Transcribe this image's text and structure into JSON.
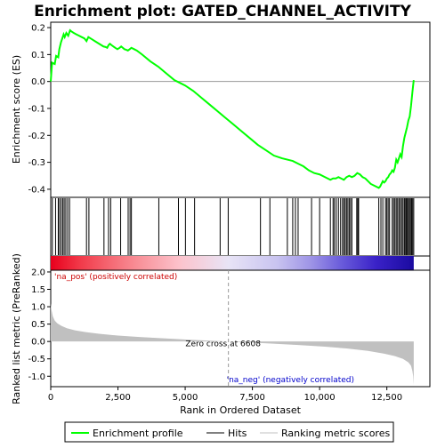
{
  "chart_data": {
    "type": "line",
    "title": "Enrichment plot: GATED_CHANNEL_ACTIVITY",
    "colors": {
      "enrichment": "#00ff00",
      "hits": "#000000",
      "metric": "#c0c0c0",
      "pos_label": "#cc0000",
      "neg_label": "#0000cc"
    },
    "top_panel": {
      "ylabel": "Enrichment score (ES)",
      "ylim": [
        -0.43,
        0.22
      ],
      "yticks": [
        0.2,
        0.1,
        0.0,
        -0.1,
        -0.2,
        -0.3,
        -0.4
      ],
      "ytick_labels": [
        "0.2",
        "0.1",
        "0.0",
        "-0.1",
        "-0.2",
        "-0.3",
        "-0.4"
      ],
      "es_curve": {
        "x": [
          0,
          50,
          150,
          200,
          280,
          320,
          380,
          430,
          480,
          520,
          580,
          650,
          720,
          780,
          860,
          950,
          1050,
          1150,
          1250,
          1330,
          1400,
          1480,
          1560,
          1640,
          1720,
          1800,
          1880,
          1960,
          2040,
          2100,
          2150,
          2200,
          2260,
          2330,
          2400,
          2480,
          2560,
          2620,
          2680,
          2740,
          2800,
          2870,
          2940,
          3000,
          3100,
          3200,
          3400,
          3700,
          4000,
          4300,
          4600,
          4800,
          5000,
          5300,
          5600,
          5900,
          6200,
          6500,
          6800,
          7100,
          7400,
          7700,
          8000,
          8300,
          8600,
          8800,
          9000,
          9200,
          9400,
          9600,
          9800,
          10000,
          10200,
          10400,
          10500,
          10600,
          10700,
          10800,
          10900,
          11000,
          11100,
          11200,
          11300,
          11400,
          11500,
          11600,
          11700,
          11800,
          11900,
          12000,
          12100,
          12200,
          12250,
          12300,
          12350,
          12400,
          12450,
          12500,
          12550,
          12600,
          12650,
          12700,
          12750,
          12800,
          12850,
          12900,
          12950,
          13000,
          13050,
          13100,
          13150,
          13200,
          13250,
          13300,
          13350,
          13400,
          13450,
          13500
        ],
        "y": [
          0.0,
          0.07,
          0.065,
          0.095,
          0.09,
          0.12,
          0.145,
          0.16,
          0.175,
          0.165,
          0.18,
          0.17,
          0.19,
          0.185,
          0.18,
          0.175,
          0.17,
          0.165,
          0.16,
          0.15,
          0.165,
          0.16,
          0.155,
          0.15,
          0.145,
          0.14,
          0.135,
          0.13,
          0.128,
          0.125,
          0.135,
          0.14,
          0.135,
          0.13,
          0.125,
          0.12,
          0.125,
          0.13,
          0.125,
          0.12,
          0.118,
          0.115,
          0.12,
          0.125,
          0.12,
          0.115,
          0.1,
          0.075,
          0.055,
          0.03,
          0.005,
          -0.005,
          -0.015,
          -0.035,
          -0.06,
          -0.085,
          -0.11,
          -0.135,
          -0.16,
          -0.185,
          -0.21,
          -0.235,
          -0.255,
          -0.275,
          -0.285,
          -0.29,
          -0.295,
          -0.305,
          -0.315,
          -0.33,
          -0.34,
          -0.345,
          -0.355,
          -0.365,
          -0.36,
          -0.36,
          -0.355,
          -0.36,
          -0.365,
          -0.355,
          -0.35,
          -0.355,
          -0.35,
          -0.34,
          -0.345,
          -0.355,
          -0.36,
          -0.37,
          -0.38,
          -0.385,
          -0.39,
          -0.395,
          -0.39,
          -0.38,
          -0.37,
          -0.375,
          -0.37,
          -0.36,
          -0.355,
          -0.345,
          -0.34,
          -0.33,
          -0.335,
          -0.32,
          -0.29,
          -0.3,
          -0.285,
          -0.27,
          -0.28,
          -0.24,
          -0.21,
          -0.19,
          -0.17,
          -0.145,
          -0.13,
          -0.09,
          -0.04,
          0.005
        ]
      }
    },
    "hits": [
      60,
      180,
      280,
      330,
      390,
      450,
      500,
      560,
      630,
      700,
      1330,
      1420,
      1980,
      2150,
      2230,
      2600,
      2880,
      2950,
      3000,
      4020,
      4750,
      5010,
      5350,
      6300,
      6600,
      7800,
      8150,
      8800,
      9000,
      9100,
      9200,
      9700,
      10000,
      10400,
      10500,
      10550,
      10620,
      10700,
      10780,
      10850,
      10900,
      10950,
      11000,
      11050,
      11100,
      11150,
      11200,
      11380,
      11420,
      11450,
      12200,
      12280,
      12350,
      12450,
      12500,
      12550,
      12600,
      12700,
      12750,
      12800,
      12850,
      12900,
      12950,
      13000,
      13050,
      13100,
      13150,
      13180,
      13220,
      13260,
      13300,
      13340,
      13380,
      13420,
      13460,
      13500
    ],
    "heatmap": {
      "stops": [
        {
          "x": 0,
          "color": "#e8001c"
        },
        {
          "x": 1100,
          "color": "#f23a4a"
        },
        {
          "x": 2400,
          "color": "#f6707a"
        },
        {
          "x": 3400,
          "color": "#f9959d"
        },
        {
          "x": 4800,
          "color": "#fcc3cc"
        },
        {
          "x": 6600,
          "color": "#e8e4f6"
        },
        {
          "x": 8400,
          "color": "#c9c4f0"
        },
        {
          "x": 9700,
          "color": "#9d93e6"
        },
        {
          "x": 10800,
          "color": "#6a5cdb"
        },
        {
          "x": 12100,
          "color": "#3a22c8"
        },
        {
          "x": 13500,
          "color": "#1a0aa0"
        }
      ]
    },
    "bottom_panel": {
      "ylabel": "Ranked list metric (PreRanked)",
      "xlabel": "Rank in Ordered Dataset",
      "ylim": [
        -1.3,
        2.05
      ],
      "yticks": [
        2.0,
        1.5,
        1.0,
        0.5,
        0.0,
        -0.5,
        -1.0
      ],
      "ytick_labels": [
        "2.0",
        "1.5",
        "1.0",
        "0.5",
        "0.0",
        "-0.5",
        "-1.0"
      ],
      "metric": {
        "x": [
          0,
          30,
          80,
          150,
          250,
          400,
          600,
          900,
          1300,
          1800,
          2500,
          3300,
          4200,
          5200,
          6000,
          6608,
          7200,
          8200,
          9200,
          10200,
          11000,
          11800,
          12400,
          12800,
          13100,
          13300,
          13400,
          13450,
          13480,
          13500
        ],
        "y": [
          1.1,
          0.9,
          0.72,
          0.6,
          0.52,
          0.45,
          0.38,
          0.32,
          0.27,
          0.22,
          0.17,
          0.13,
          0.09,
          0.05,
          0.02,
          0.0,
          -0.02,
          -0.06,
          -0.1,
          -0.15,
          -0.2,
          -0.27,
          -0.35,
          -0.42,
          -0.5,
          -0.6,
          -0.7,
          -0.85,
          -1.0,
          -1.25
        ]
      },
      "zero_cross_rank": 6608,
      "zero_cross_label": "Zero cross at 6608",
      "pos_label": "'na_pos' (positively correlated)",
      "neg_label": "'na_neg' (negatively correlated)"
    },
    "xaxis": {
      "xlim": [
        0,
        14100
      ],
      "xticks": [
        0,
        2500,
        5000,
        7500,
        10000,
        12500
      ],
      "xtick_labels": [
        "0",
        "2,500",
        "5,000",
        "7,500",
        "10,000",
        "12,500"
      ],
      "data_end": 13500
    },
    "legend": {
      "placement": "bottom",
      "entries": [
        {
          "label": "Enrichment profile",
          "kind": "line-green"
        },
        {
          "label": "Hits",
          "kind": "line-black"
        },
        {
          "label": "Ranking metric scores",
          "kind": "line-gray"
        }
      ]
    }
  }
}
